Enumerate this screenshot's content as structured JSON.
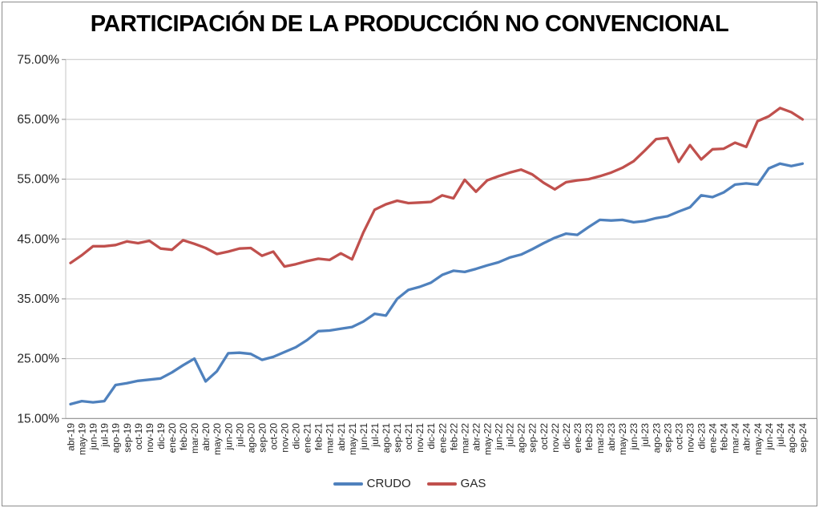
{
  "chart_data": {
    "type": "line",
    "title": "PARTICIPACIÓN DE LA PRODUCCIÓN NO CONVENCIONAL",
    "categories": [
      "abr-19",
      "may-19",
      "jun-19",
      "jul-19",
      "ago-19",
      "sep-19",
      "oct-19",
      "nov-19",
      "dic-19",
      "ene-20",
      "feb-20",
      "mar-20",
      "abr-20",
      "may-20",
      "jun-20",
      "jul-20",
      "ago-20",
      "sep-20",
      "oct-20",
      "nov-20",
      "dic-20",
      "ene-21",
      "feb-21",
      "mar-21",
      "abr-21",
      "may-21",
      "jun-21",
      "jul-21",
      "ago-21",
      "sep-21",
      "oct-21",
      "nov-21",
      "dic-21",
      "ene-22",
      "feb-22",
      "mar-22",
      "abr-22",
      "may-22",
      "jun-22",
      "jul-22",
      "ago-22",
      "sep-22",
      "oct-22",
      "nov-22",
      "dic-22",
      "ene-23",
      "feb-23",
      "mar-23",
      "abr-23",
      "may-23",
      "jun-23",
      "jul-23",
      "ago-23",
      "sep-23",
      "oct-23",
      "nov-23",
      "dic-23",
      "ene-24",
      "feb-24",
      "mar-24",
      "abr-24",
      "may-24",
      "jun-24",
      "jul-24",
      "ago-24",
      "sep-24"
    ],
    "series": [
      {
        "name": "CRUDO",
        "color": "#4F81BD",
        "values": [
          17.4,
          17.9,
          17.7,
          17.9,
          20.6,
          20.9,
          21.3,
          21.5,
          21.7,
          22.7,
          23.9,
          25.0,
          21.2,
          22.9,
          25.9,
          26.0,
          25.8,
          24.8,
          25.3,
          26.1,
          26.9,
          28.1,
          29.6,
          29.7,
          30.0,
          30.3,
          31.2,
          32.5,
          32.2,
          35.0,
          36.5,
          37.0,
          37.7,
          39.0,
          39.7,
          39.5,
          40.0,
          40.6,
          41.1,
          41.9,
          42.4,
          43.3,
          44.3,
          45.2,
          45.9,
          45.7,
          47.0,
          48.2,
          48.1,
          48.2,
          47.8,
          48.0,
          48.5,
          48.8,
          49.6,
          50.3,
          52.3,
          52.0,
          52.8,
          54.1,
          54.3,
          54.1,
          56.8,
          57.6,
          57.2,
          57.6
        ]
      },
      {
        "name": "GAS",
        "color": "#C0504D",
        "values": [
          41.0,
          42.3,
          43.8,
          43.8,
          44.0,
          44.6,
          44.3,
          44.7,
          43.4,
          43.2,
          44.8,
          44.2,
          43.5,
          42.5,
          42.9,
          43.4,
          43.5,
          42.2,
          42.9,
          40.4,
          40.8,
          41.3,
          41.7,
          41.5,
          42.6,
          41.6,
          46.1,
          49.9,
          50.8,
          51.4,
          51.0,
          51.1,
          51.2,
          52.3,
          51.8,
          54.9,
          52.9,
          54.8,
          55.5,
          56.1,
          56.6,
          55.8,
          54.4,
          53.3,
          54.5,
          54.8,
          55.0,
          55.5,
          56.1,
          56.9,
          58.0,
          59.8,
          61.7,
          61.9,
          57.9,
          60.7,
          58.3,
          60.0,
          60.1,
          61.1,
          60.4,
          64.7,
          65.5,
          66.9,
          66.2,
          65.0
        ]
      }
    ],
    "ylim": [
      15,
      75
    ],
    "ytick_step": 10,
    "ytick_labels": [
      "15.00%",
      "25.00%",
      "35.00%",
      "45.00%",
      "55.00%",
      "65.00%",
      "75.00%"
    ],
    "xlabel": "",
    "ylabel": "",
    "grid": true,
    "legend_position": "bottom"
  },
  "colors": {
    "gridline": "#c6c6c6",
    "axis_line": "#8c8c8c",
    "tick_text": "#262626",
    "frame_border": "#8c8c8c"
  }
}
